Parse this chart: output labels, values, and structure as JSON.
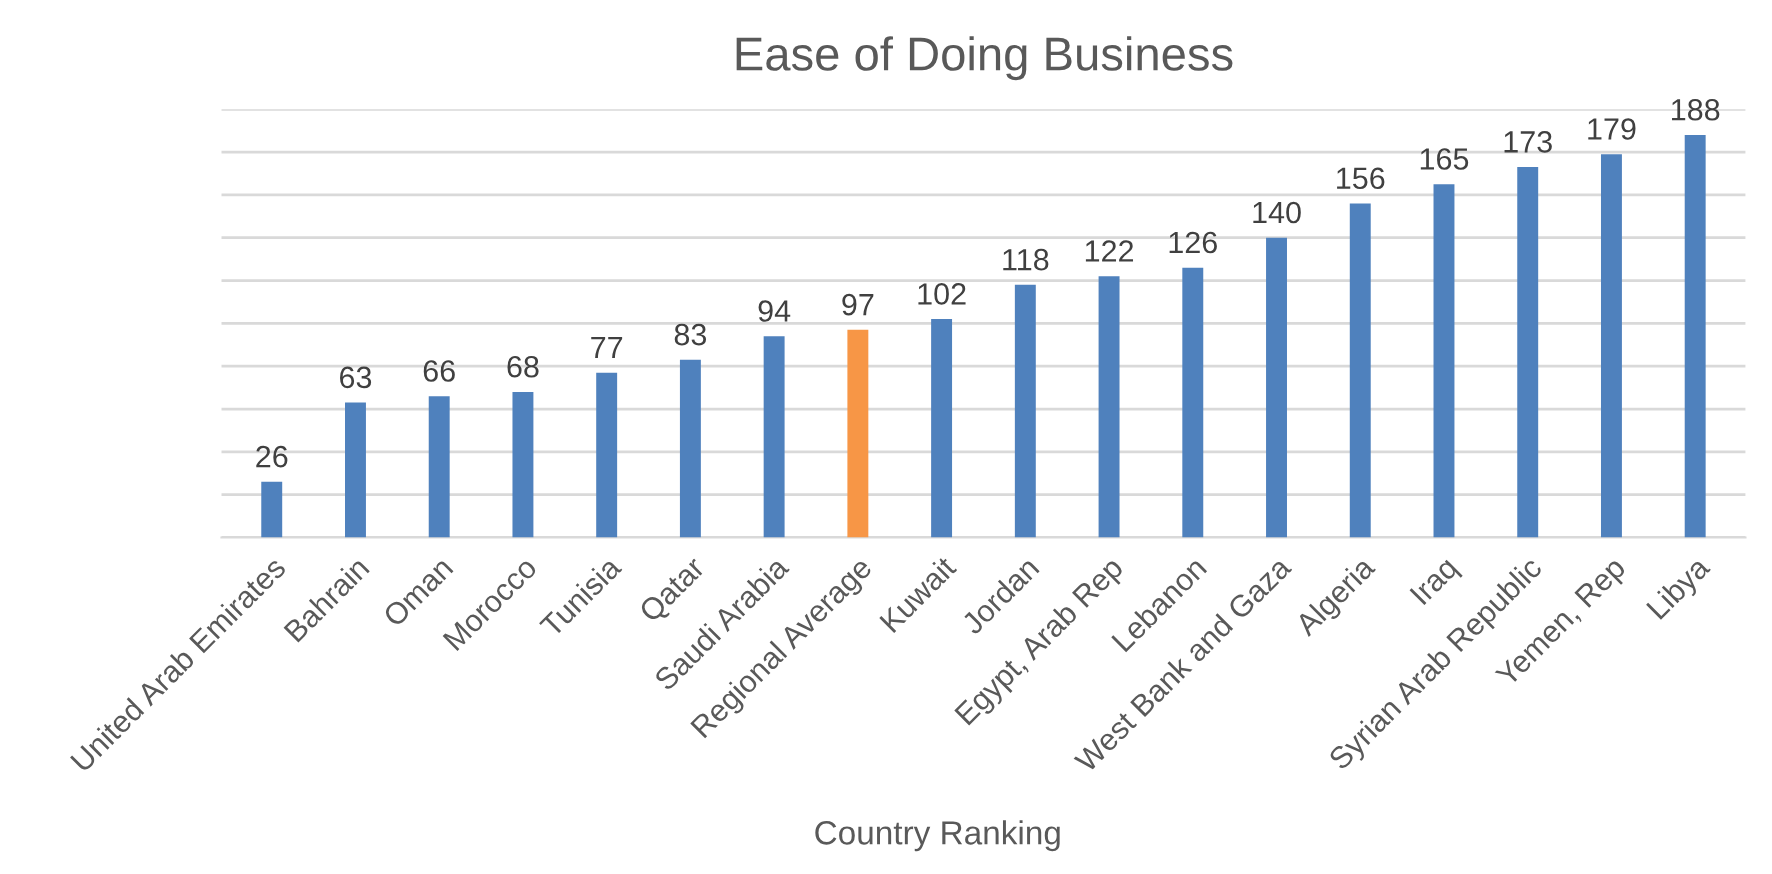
{
  "chart_data": {
    "type": "bar",
    "title": "Ease of Doing Business",
    "xlabel": "Country Ranking",
    "categories": [
      "United Arab Emirates",
      "Bahrain",
      "Oman",
      "Morocco",
      "Tunisia",
      "Qatar",
      "Saudi Arabia",
      "Regional Average",
      "Kuwait",
      "Jordan",
      "Egypt, Arab Rep",
      "Lebanon",
      "West Bank and Gaza",
      "Algeria",
      "Iraq",
      "Syrian Arab Republic",
      "Yemen, Rep",
      "Libya"
    ],
    "values": [
      26,
      63,
      66,
      68,
      77,
      83,
      94,
      97,
      102,
      118,
      122,
      126,
      140,
      156,
      165,
      173,
      179,
      188
    ],
    "colors": [
      "#4f81bd",
      "#4f81bd",
      "#4f81bd",
      "#4f81bd",
      "#4f81bd",
      "#4f81bd",
      "#4f81bd",
      "#f79646",
      "#4f81bd",
      "#4f81bd",
      "#4f81bd",
      "#4f81bd",
      "#4f81bd",
      "#4f81bd",
      "#4f81bd",
      "#4f81bd",
      "#4f81bd",
      "#4f81bd"
    ],
    "ylim": [
      0,
      200
    ],
    "yticks": [
      {
        "value": 0,
        "label": null
      },
      {
        "value": 20,
        "label": null
      },
      {
        "value": 40,
        "label": null
      },
      {
        "value": 60,
        "label": null
      },
      {
        "value": 80,
        "label": null
      },
      {
        "value": 100,
        "label": null
      },
      {
        "value": 120,
        "label": null
      },
      {
        "value": 140,
        "label": null
      },
      {
        "value": 160,
        "label": null
      },
      {
        "value": 180,
        "label": null
      },
      {
        "value": 200,
        "label": null
      }
    ],
    "grid": "y",
    "legend": false,
    "tick_labels": "x",
    "data_labels": true
  }
}
